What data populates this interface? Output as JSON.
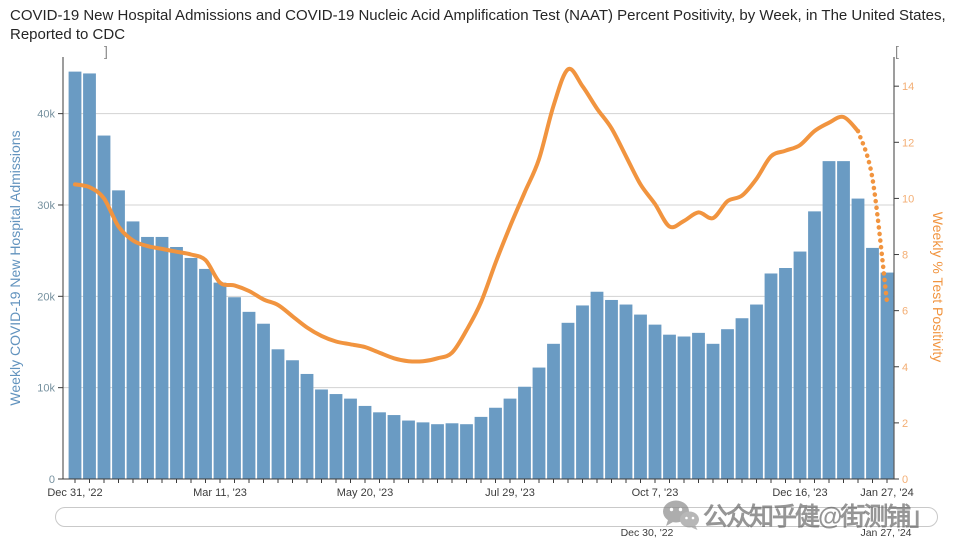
{
  "page": {
    "background": "#ffffff"
  },
  "title": "COVID-19 New Hospital Admissions and COVID-19 Nucleic Acid Amplification Test (NAAT) Percent Positivity, by Week, in The United States, Reported to CDC",
  "watermark": {
    "icon": "wechat-icon",
    "text": "公众知乎健@街测铺」"
  },
  "range_slider": {
    "start_label": "Dec 30, '22",
    "end_label": "Jan 27, '24"
  },
  "chart_data": {
    "type": "combo-bar-line",
    "weeks": 57,
    "grid": "horizontal",
    "legend": "none",
    "x_tick_labels": [
      {
        "index": 0,
        "label": "Dec 31, '22"
      },
      {
        "index": 10,
        "label": "Mar 11, '23"
      },
      {
        "index": 20,
        "label": "May 20, '23"
      },
      {
        "index": 30,
        "label": "Jul 29, '23"
      },
      {
        "index": 40,
        "label": "Oct 7, '23"
      },
      {
        "index": 50,
        "label": "Dec 16, '23"
      },
      {
        "index": 56,
        "label": "Jan 27, '24"
      }
    ],
    "left_axis": {
      "title": "Weekly COVID-19 New Hospital Admissions",
      "tick_labels": [
        "0",
        "10k",
        "20k",
        "30k",
        "40k"
      ],
      "tick_values": [
        0,
        10000,
        20000,
        30000,
        40000
      ],
      "max": 46200,
      "title_color": "#6293be",
      "tick_color": "#76919f"
    },
    "right_axis": {
      "title": "Weekly % Test Positivity",
      "tick_labels": [
        "0",
        "2",
        "4",
        "6",
        "8",
        "10",
        "12",
        "14"
      ],
      "tick_values": [
        0,
        2,
        4,
        6,
        8,
        10,
        12,
        14
      ],
      "max": 15.04,
      "title_color": "#f1943f",
      "tick_color": "#f3ae74"
    },
    "series": [
      {
        "name": "Weekly COVID-19 New Hospital Admissions",
        "type": "bar",
        "axis": "left",
        "color": "#6a9bc3",
        "values": [
          44600,
          44400,
          37600,
          31600,
          28200,
          26500,
          26500,
          25400,
          24200,
          23000,
          21500,
          19900,
          18300,
          17000,
          14200,
          13000,
          11500,
          9800,
          9300,
          8800,
          8000,
          7300,
          7000,
          6400,
          6200,
          6000,
          6100,
          6000,
          6800,
          7800,
          8800,
          10100,
          12200,
          14800,
          17100,
          19000,
          20500,
          19600,
          19100,
          18000,
          16900,
          15800,
          15600,
          16000,
          14800,
          16400,
          17600,
          19100,
          22500,
          23100,
          24900,
          29300,
          34800,
          34800,
          30700,
          25300,
          22600
        ]
      },
      {
        "name": "Weekly % Test Positivity (NAAT)",
        "type": "line",
        "axis": "right",
        "color": "#f1943f",
        "dotted_from_index": 54,
        "values": [
          10.5,
          10.4,
          10.0,
          9.0,
          8.5,
          8.3,
          8.2,
          8.1,
          8.0,
          7.8,
          7.0,
          6.9,
          6.7,
          6.4,
          6.2,
          5.8,
          5.4,
          5.1,
          4.9,
          4.8,
          4.7,
          4.5,
          4.3,
          4.2,
          4.2,
          4.3,
          4.5,
          5.3,
          6.3,
          7.7,
          9.0,
          10.2,
          11.4,
          13.3,
          14.6,
          14.0,
          13.2,
          12.5,
          11.5,
          10.5,
          9.8,
          9.0,
          9.2,
          9.5,
          9.3,
          9.9,
          10.1,
          10.7,
          11.5,
          11.7,
          11.9,
          12.4,
          12.7,
          12.9,
          12.4,
          10.7,
          6.3
        ]
      }
    ]
  }
}
